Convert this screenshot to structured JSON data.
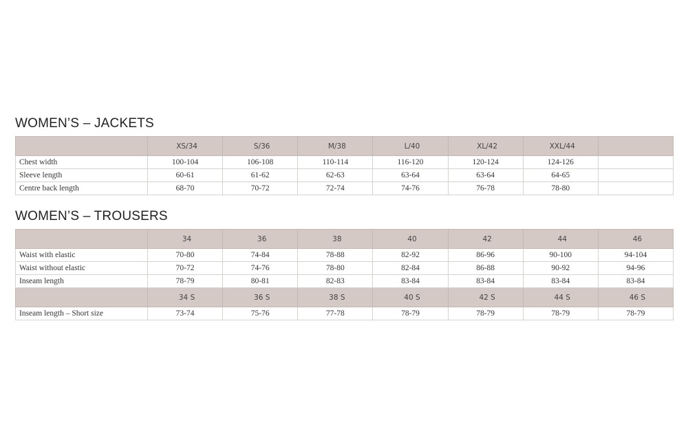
{
  "jackets": {
    "title": "WOMEN’S – JACKETS",
    "header_color": "#d5c9c5",
    "sizes": [
      "XS/34",
      "S/36",
      "M/38",
      "L/40",
      "XL/42",
      "XXL/44",
      ""
    ],
    "rows": [
      {
        "label": "Chest width",
        "values": [
          "100-104",
          "106-108",
          "110-114",
          "116-120",
          "120-124",
          "124-126",
          ""
        ]
      },
      {
        "label": "Sleeve length",
        "values": [
          "60-61",
          "61-62",
          "62-63",
          "63-64",
          "63-64",
          "64-65",
          ""
        ]
      },
      {
        "label": "Centre back length",
        "values": [
          "68-70",
          "70-72",
          "72-74",
          "74-76",
          "76-78",
          "78-80",
          ""
        ]
      }
    ]
  },
  "trousers": {
    "title": "WOMEN’S – TROUSERS",
    "sizes": [
      "34",
      "36",
      "38",
      "40",
      "42",
      "44",
      "46"
    ],
    "rows": [
      {
        "label": "Waist with elastic",
        "values": [
          "70-80",
          "74-84",
          "78-88",
          "82-92",
          "86-96",
          "90-100",
          "94-104"
        ]
      },
      {
        "label": "Waist without elastic",
        "values": [
          "70-72",
          "74-76",
          "78-80",
          "82-84",
          "86-88",
          "90-92",
          "94-96"
        ]
      },
      {
        "label": "Inseam length",
        "values": [
          "78-79",
          "80-81",
          "82-83",
          "83-84",
          "83-84",
          "83-84",
          "83-84"
        ]
      }
    ],
    "short_sizes": [
      "34 S",
      "36 S",
      "38 S",
      "40 S",
      "42 S",
      "44 S",
      "46 S"
    ],
    "short_rows": [
      {
        "label": "Inseam length – Short size",
        "values": [
          "73-74",
          "75-76",
          "77-78",
          "78-79",
          "78-79",
          "78-79",
          "78-79"
        ]
      }
    ]
  }
}
